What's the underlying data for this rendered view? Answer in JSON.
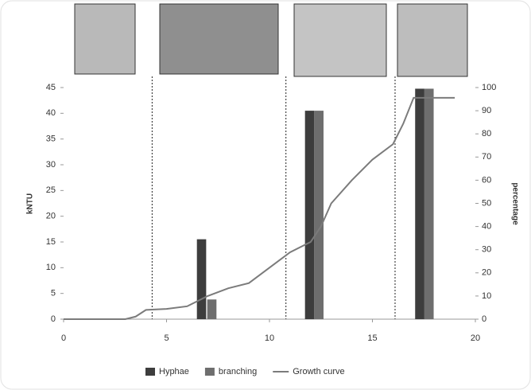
{
  "chart_data": {
    "type": "bar-line",
    "y_label": "kNTU",
    "y2_label": "percentage",
    "xlim": [
      0,
      20
    ],
    "xticks": [
      0,
      5,
      10,
      15,
      20
    ],
    "ylim": [
      0,
      45
    ],
    "yticks": [
      0,
      5,
      10,
      15,
      20,
      25,
      30,
      35,
      40,
      45
    ],
    "y2lim": [
      0,
      100
    ],
    "y2ticks": [
      0,
      10,
      20,
      30,
      40,
      50,
      60,
      70,
      80,
      90,
      100
    ],
    "vlines": [
      4.3,
      10.8,
      16.1
    ],
    "series": [
      {
        "name": "Hyphae",
        "type": "bar",
        "color": "#3d3d3d",
        "axis": "y2",
        "x": [
          6.7,
          11.95,
          17.3
        ],
        "values": [
          34.5,
          90,
          99.5
        ]
      },
      {
        "name": "branching",
        "type": "bar",
        "color": "#6e6e6e",
        "axis": "y2",
        "x": [
          7.2,
          12.4,
          17.75
        ],
        "values": [
          8.5,
          90,
          99.5
        ]
      },
      {
        "name": "Growth curve",
        "type": "line",
        "color": "#7b7b7b",
        "x": [
          0,
          3,
          3.5,
          4,
          5,
          6,
          6.5,
          7,
          8,
          9,
          10,
          11,
          12,
          12.5,
          13,
          14,
          15,
          16,
          16.5,
          17,
          18,
          19
        ],
        "values": [
          0,
          0,
          0.5,
          1.8,
          2,
          2.5,
          3.5,
          4.5,
          6,
          7,
          10,
          13,
          15,
          18,
          22.5,
          27,
          31,
          34,
          38,
          43,
          43,
          43
        ]
      }
    ]
  }
}
